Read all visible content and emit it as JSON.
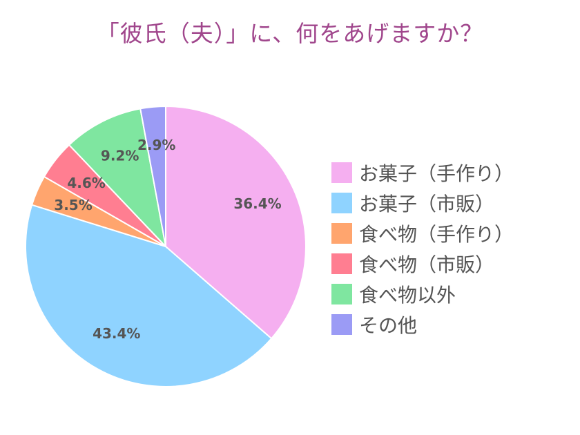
{
  "chart_data": {
    "type": "pie",
    "title": "「彼氏（夫）」に、何をあげますか？",
    "legend_position": "right",
    "slices": [
      {
        "label": "お菓子（手作り）",
        "value": 36.4,
        "display": "36.4%",
        "color": "#f5aff0"
      },
      {
        "label": "お菓子（市販）",
        "value": 43.4,
        "display": "43.4%",
        "color": "#8fd3ff"
      },
      {
        "label": "食べ物（手作り）",
        "value": 3.5,
        "display": "3.5%",
        "color": "#ffa56e"
      },
      {
        "label": "食べ物（市販）",
        "value": 4.6,
        "display": "4.6%",
        "color": "#ff7e91"
      },
      {
        "label": "食べ物以外",
        "value": 9.2,
        "display": "9.2%",
        "color": "#7fe6a0"
      },
      {
        "label": "その他",
        "value": 2.9,
        "display": "2.9%",
        "color": "#9b9bf5"
      }
    ]
  }
}
